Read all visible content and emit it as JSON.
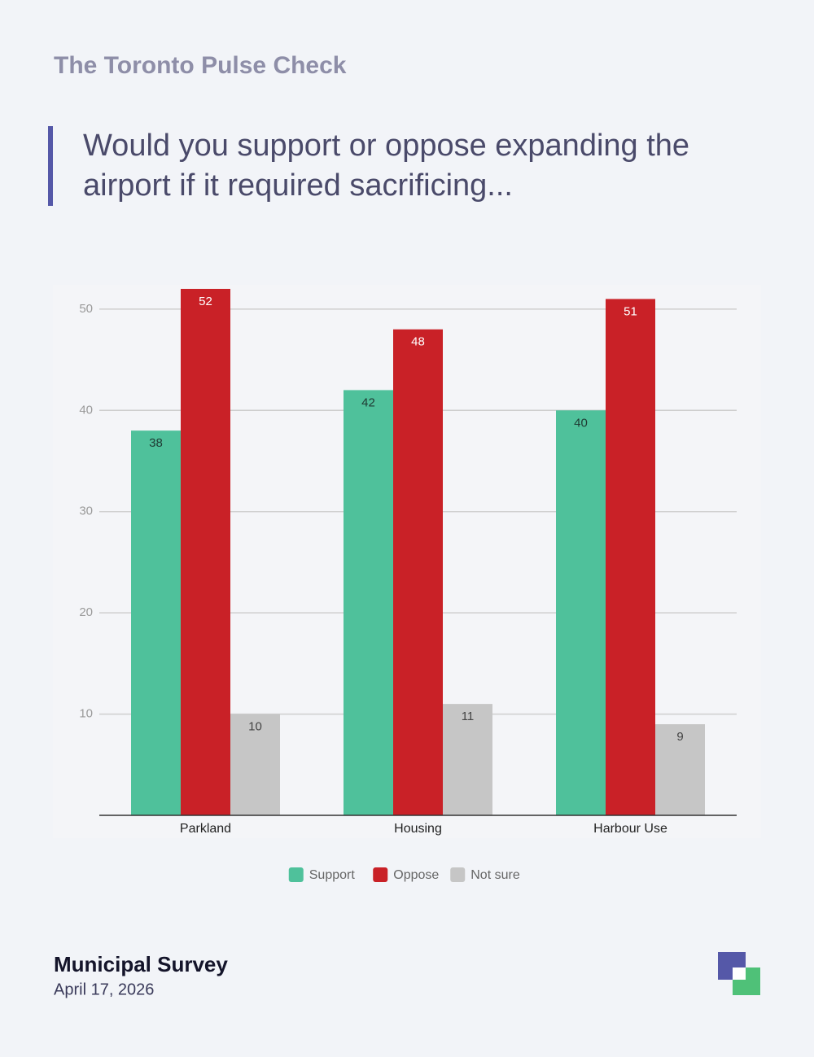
{
  "header": {
    "title": "The Toronto Pulse Check"
  },
  "question": {
    "line1": "Would you support or oppose expanding the",
    "line2": "airport if it required sacrificing..."
  },
  "chart_data": {
    "type": "bar",
    "categories": [
      "Parkland",
      "Housing",
      "Harbour Use"
    ],
    "series": [
      {
        "name": "Support",
        "color": "#4fc19b",
        "values": [
          38,
          42,
          40
        ]
      },
      {
        "name": "Oppose",
        "color": "#c92127",
        "values": [
          52,
          48,
          51
        ]
      },
      {
        "name": "Not sure",
        "color": "#c6c6c6",
        "values": [
          10,
          11,
          9
        ]
      }
    ],
    "ylim": [
      0,
      52
    ],
    "yticks": [
      10,
      20,
      30,
      40,
      50
    ],
    "grid": true,
    "legend": "bottom"
  },
  "footer": {
    "title": "Municipal Survey",
    "date": "April 17, 2026"
  }
}
